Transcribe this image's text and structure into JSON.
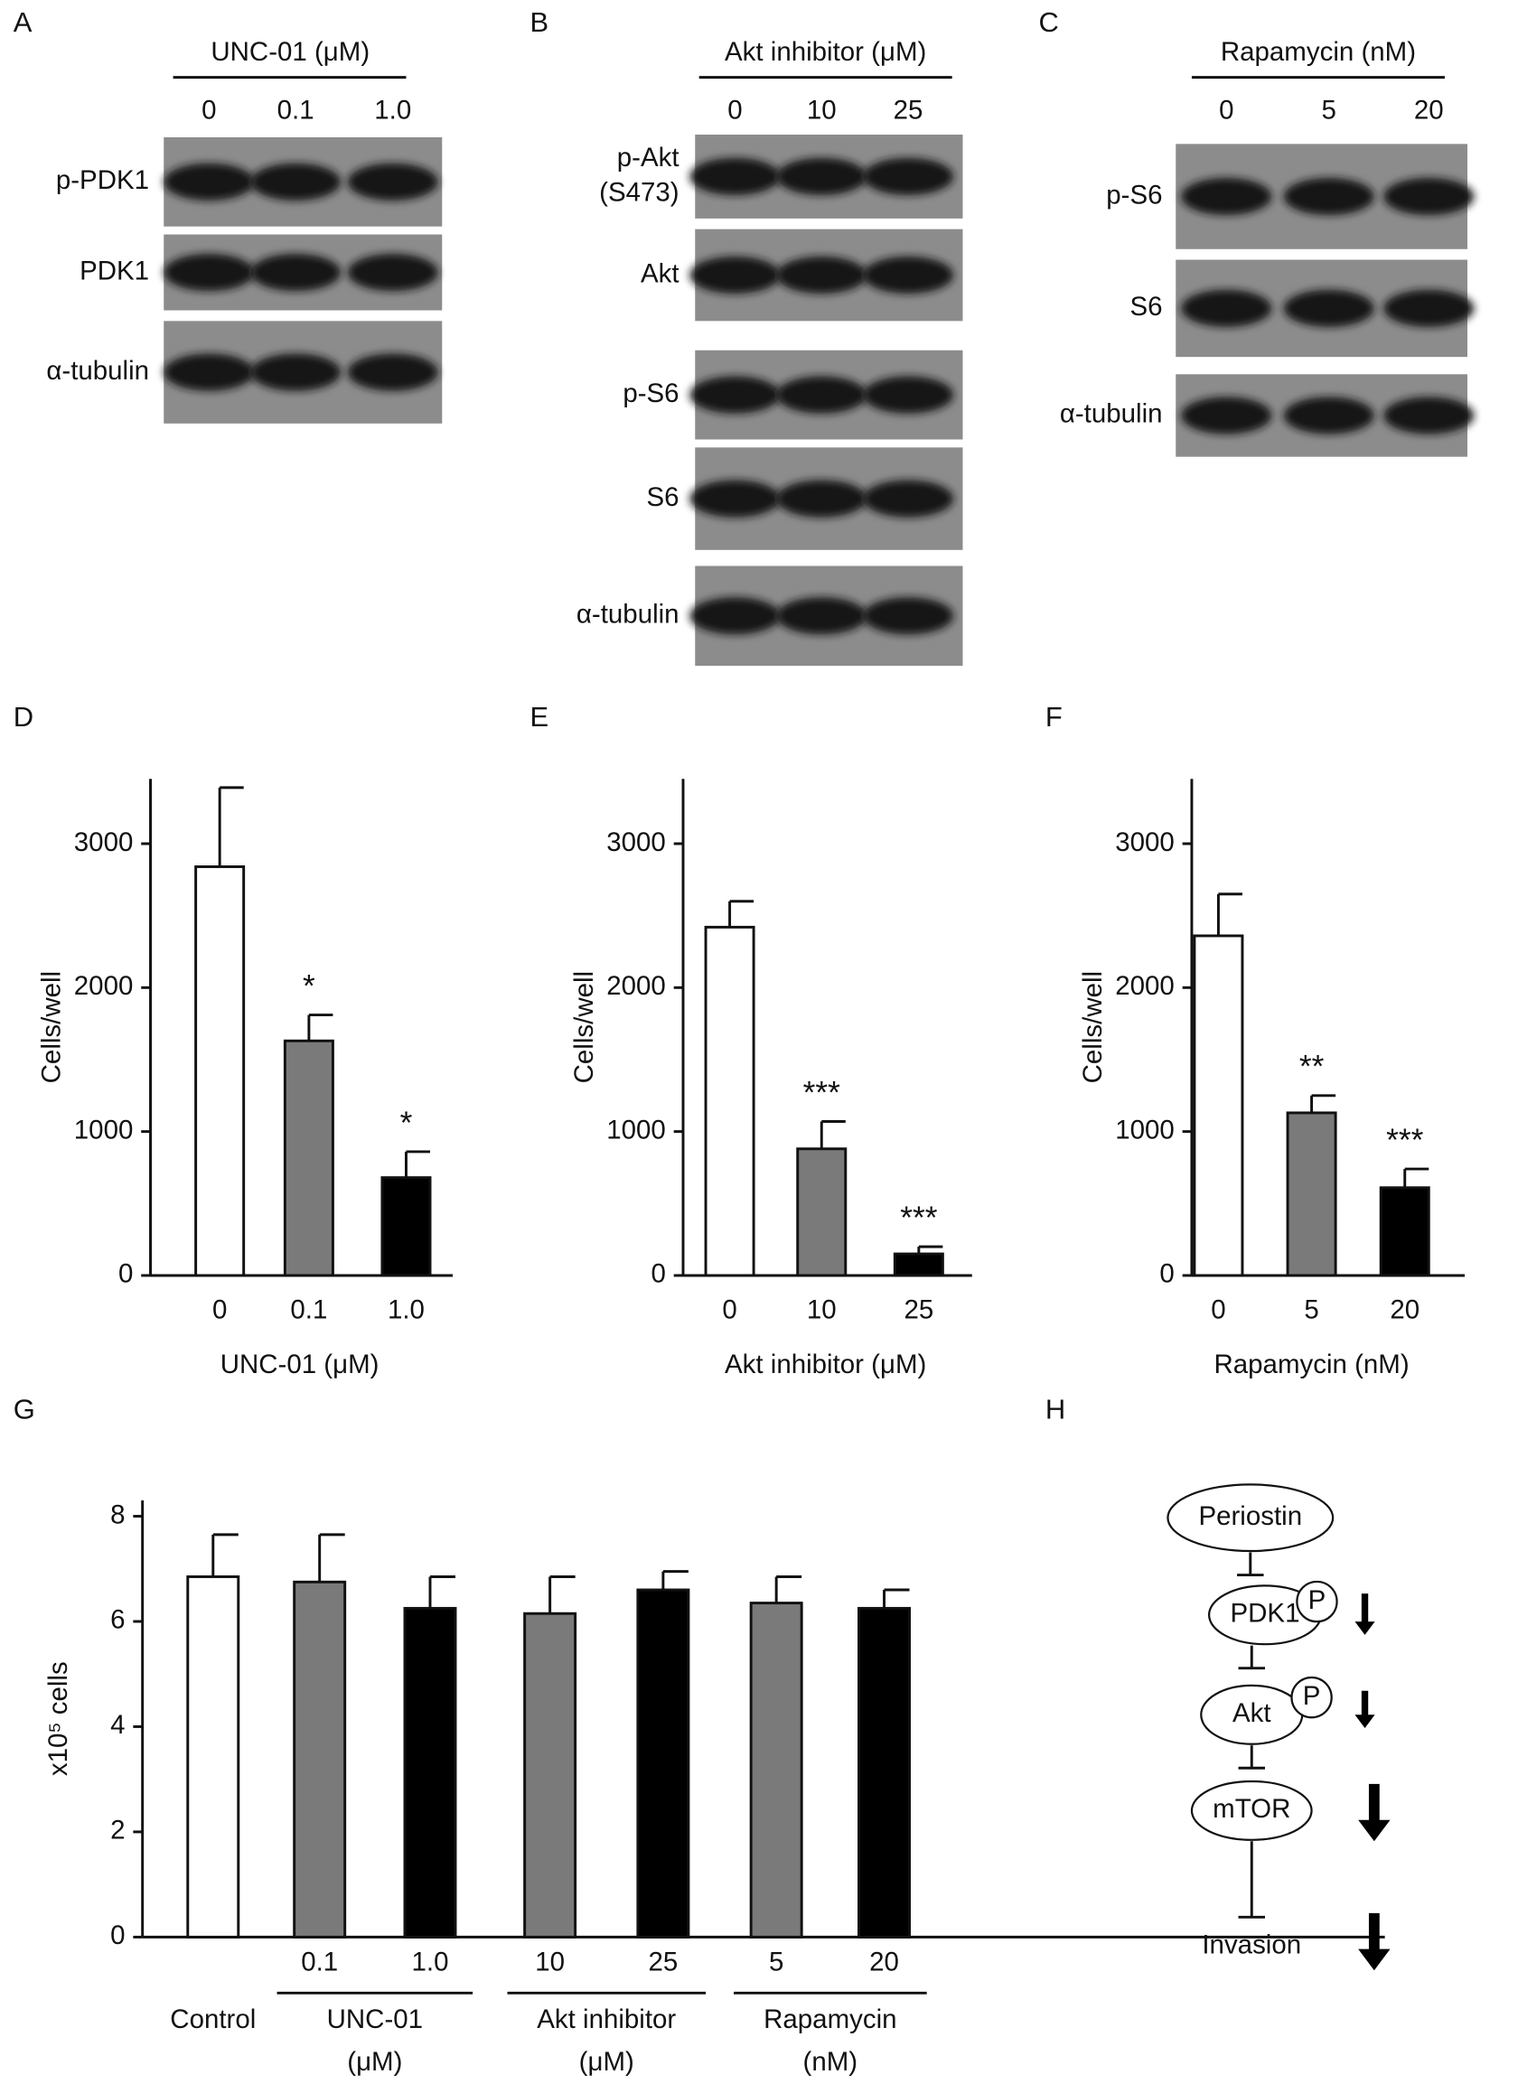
{
  "panel_letters": [
    "A",
    "B",
    "C",
    "D",
    "E",
    "F",
    "G",
    "H"
  ],
  "blots": [
    {
      "title": "UNC-01 (μM)",
      "lanes": [
        "0",
        "0.1",
        "1.0"
      ],
      "rows": [
        "p-PDK1",
        "PDK1",
        "α-tubulin"
      ]
    },
    {
      "title": "Akt inhibitor (μM)",
      "lanes": [
        "0",
        "10",
        "25"
      ],
      "rows": [
        "p-Akt",
        "(S473)",
        "Akt",
        "p-S6",
        "S6",
        "α-tubulin"
      ]
    },
    {
      "title": "Rapamycin (nM)",
      "lanes": [
        "0",
        "5",
        "20"
      ],
      "rows": [
        "p-S6",
        "S6",
        "α-tubulin"
      ]
    }
  ],
  "chart_data": [
    {
      "type": "bar",
      "x_label": "UNC-01 (μM)",
      "y_label": "Cells/well",
      "categories": [
        "0",
        "0.1",
        "1.0"
      ],
      "values": [
        2840,
        1630,
        680
      ],
      "errors": [
        550,
        180,
        180
      ],
      "colors": [
        "#ffffff",
        "#7a7a7a",
        "#000000"
      ],
      "significance": [
        null,
        "*",
        "*"
      ],
      "ylim": [
        0,
        3450
      ],
      "yticks": [
        0,
        1000,
        2000,
        3000
      ]
    },
    {
      "type": "bar",
      "x_label": "Akt inhibitor (μM)",
      "y_label": "Cells/well",
      "categories": [
        "0",
        "10",
        "25"
      ],
      "values": [
        2420,
        880,
        150
      ],
      "errors": [
        180,
        190,
        50
      ],
      "colors": [
        "#ffffff",
        "#7a7a7a",
        "#000000"
      ],
      "significance": [
        null,
        "***",
        "***"
      ],
      "ylim": [
        0,
        3450
      ],
      "yticks": [
        0,
        1000,
        2000,
        3000
      ]
    },
    {
      "type": "bar",
      "x_label": "Rapamycin (nM)",
      "y_label": "Cells/well",
      "categories": [
        "0",
        "5",
        "20"
      ],
      "values": [
        2360,
        1130,
        610
      ],
      "errors": [
        290,
        120,
        130
      ],
      "colors": [
        "#ffffff",
        "#7a7a7a",
        "#000000"
      ],
      "significance": [
        null,
        "**",
        "***"
      ],
      "ylim": [
        0,
        3450
      ],
      "yticks": [
        0,
        1000,
        2000,
        3000
      ]
    },
    {
      "type": "bar",
      "y_label": "x10⁵ cells",
      "categories": [
        null,
        "0.1",
        "1.0",
        "10",
        "25",
        "5",
        "20"
      ],
      "values": [
        6.85,
        6.75,
        6.25,
        6.15,
        6.6,
        6.35,
        6.25
      ],
      "errors": [
        0.8,
        0.9,
        0.6,
        0.7,
        0.35,
        0.5,
        0.35
      ],
      "colors": [
        "#ffffff",
        "#7a7a7a",
        "#000000",
        "#7a7a7a",
        "#000000",
        "#7a7a7a",
        "#000000"
      ],
      "group_labels": [
        "Control",
        "UNC-01",
        "Akt inhibitor",
        "Rapamycin"
      ],
      "group_units": [
        null,
        "(μM)",
        "(μM)",
        "(nM)"
      ],
      "ylim": [
        0,
        8.3
      ],
      "yticks": [
        0,
        2,
        4,
        6,
        8
      ]
    }
  ],
  "diagram": {
    "nodes": [
      "Periostin",
      "PDK1",
      "Akt",
      "mTOR",
      "Invasion"
    ],
    "phospho": "P"
  }
}
